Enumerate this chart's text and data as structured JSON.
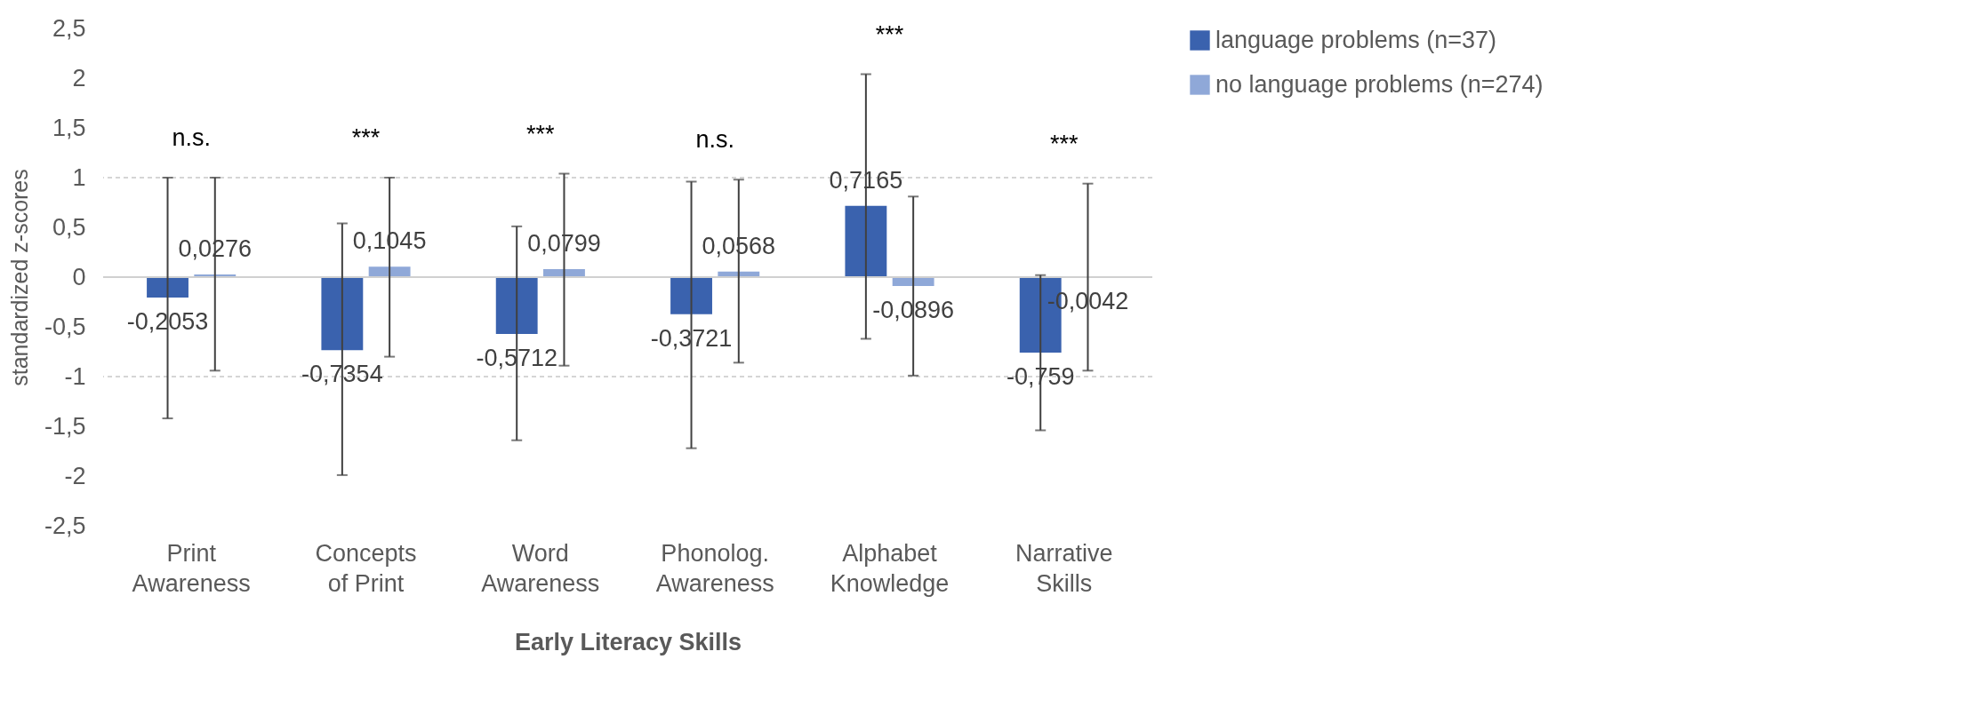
{
  "chart_data": {
    "type": "bar",
    "xlabel": "Early Literacy Skills",
    "ylabel": "standardized z-scores",
    "categories": [
      "Print Awareness",
      "Concepts of Print",
      "Word Awareness",
      "Phonolog. Awareness",
      "Alphabet Knowledge",
      "Narrative Skills"
    ],
    "series": [
      {
        "name": "language problems (n=37)",
        "color": "#3a62ae",
        "values": [
          -0.2053,
          -0.7354,
          -0.5712,
          -0.3721,
          0.7165,
          -0.759
        ],
        "value_labels": [
          "-0,2053",
          "-0,7354",
          "-0,5712",
          "-0,3721",
          "0,7165",
          "-0,759"
        ],
        "errors": [
          [
            -1.42,
            1.0
          ],
          [
            -1.99,
            0.54
          ],
          [
            -1.64,
            0.51
          ],
          [
            -1.72,
            0.96
          ],
          [
            -0.62,
            2.04
          ],
          [
            -1.54,
            0.02
          ]
        ]
      },
      {
        "name": "no language problems (n=274)",
        "color": "#8fa8d8",
        "values": [
          0.0276,
          0.1045,
          0.0799,
          0.0568,
          -0.0896,
          -0.0042
        ],
        "value_labels": [
          "0,0276",
          "0,1045",
          "0,0799",
          "0,0568",
          "-0,0896",
          "-0,0042"
        ],
        "errors": [
          [
            -0.94,
            1.0
          ],
          [
            -0.8,
            1.0
          ],
          [
            -0.89,
            1.04
          ],
          [
            -0.86,
            0.98
          ],
          [
            -0.99,
            0.81
          ],
          [
            -0.94,
            0.94
          ]
        ]
      }
    ],
    "ylim": [
      -2.5,
      2.5
    ],
    "yticks": [
      {
        "value": -2.5,
        "label": "-2,5"
      },
      {
        "value": -2,
        "label": "-2"
      },
      {
        "value": -1.5,
        "label": "-1,5"
      },
      {
        "value": -1,
        "label": "-1"
      },
      {
        "value": -0.5,
        "label": "-0,5"
      },
      {
        "value": 0,
        "label": "0"
      },
      {
        "value": 0.5,
        "label": "0,5"
      },
      {
        "value": 1,
        "label": "1"
      },
      {
        "value": 1.5,
        "label": "1,5"
      },
      {
        "value": 2,
        "label": "2"
      },
      {
        "value": 2.5,
        "label": "2,5"
      }
    ],
    "ref_lines": [
      {
        "axis": "y",
        "value": 1,
        "color": "#c8c8c8",
        "line_style": "dashed"
      },
      {
        "axis": "y",
        "value": -1,
        "color": "#c8c8c8",
        "line_style": "dashed"
      }
    ],
    "annotations": [
      "n.s.",
      "***",
      "***",
      "n.s.",
      "***",
      "***"
    ],
    "legend": "right",
    "grid": false
  }
}
